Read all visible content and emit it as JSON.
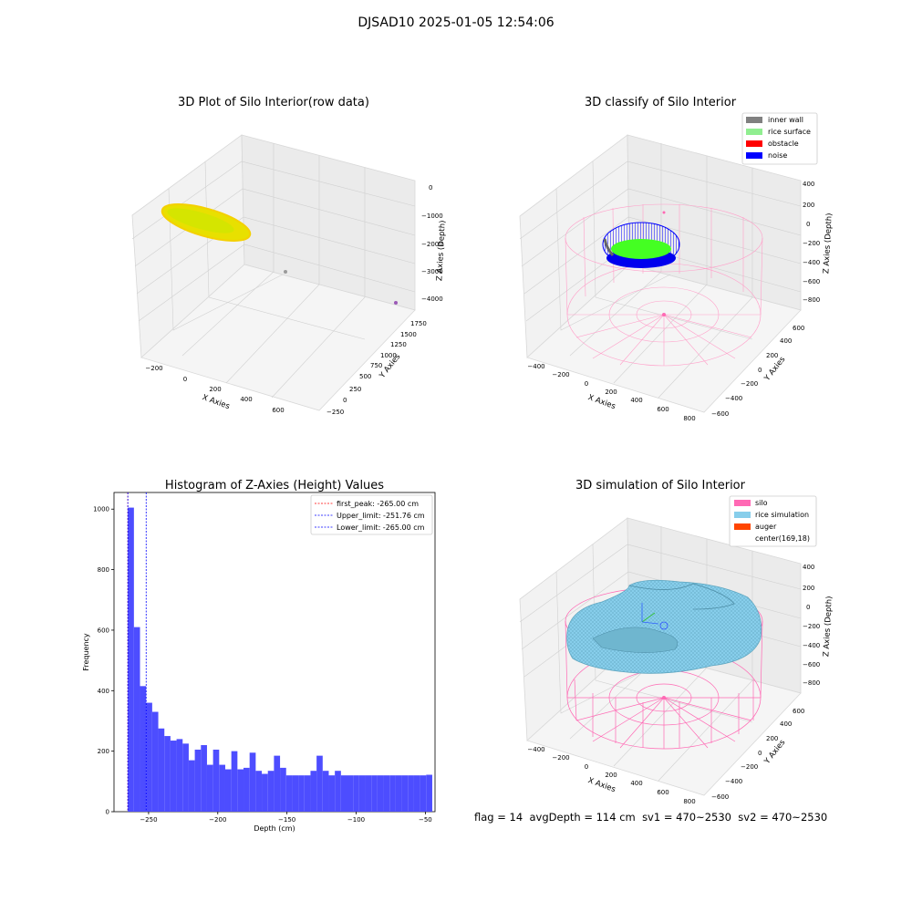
{
  "figure": {
    "suptitle": "DJSAD10 2025-01-05 12:54:06",
    "status": {
      "flag": "flag = 14",
      "avg_depth": "avgDepth = 114 cm",
      "sv1": "sv1 = 470~2530",
      "sv2": "sv2 = 470~2530"
    }
  },
  "colors": {
    "raw_points": "#e8e000",
    "inner_wall": "#808080",
    "rice_surface": "#90ee90",
    "obstacle": "#ff0000",
    "noise": "#0000ff",
    "silo": "#ff69b4",
    "rice_simulation": "#87ceeb",
    "auger": "#ff4500",
    "histogram_bar": "#4d4dff",
    "first_peak_line": "#ff0000",
    "limit_line": "#0000ff"
  },
  "chart_data": [
    {
      "type": "scatter",
      "projection": "3d",
      "title": "3D Plot of Silo Interior(row data)",
      "xlabel": "X Axies",
      "ylabel": "Y Axies",
      "zlabel": "Z Axies (Depth)",
      "x_ticks": [
        "−200",
        "0",
        "200",
        "400",
        "600"
      ],
      "y_ticks": [
        "−250",
        "0",
        "250",
        "500",
        "750",
        "1000",
        "1250",
        "1500",
        "1750"
      ],
      "z_ticks": [
        "0",
        "−1000",
        "−2000",
        "−3000",
        "−4000"
      ],
      "series": [
        {
          "points_description_color": "yellow",
          "x_range": [
            -250,
            0
          ],
          "y_range": [
            1300,
            1800
          ],
          "z_range": [
            -300,
            0
          ]
        }
      ],
      "outliers": [
        {
          "x": 200,
          "y": 800,
          "z": -2700
        },
        {
          "x": 600,
          "y": 900,
          "z": -4100
        }
      ]
    },
    {
      "type": "scatter",
      "projection": "3d",
      "title": "3D classify of Silo Interior",
      "xlabel": "X Axies",
      "ylabel": "Y Axies",
      "zlabel": "Z Axies (Depth)",
      "x_ticks": [
        "−400",
        "−200",
        "0",
        "200",
        "400",
        "600",
        "800"
      ],
      "y_ticks": [
        "−600",
        "−400",
        "−200",
        "0",
        "200",
        "400",
        "600"
      ],
      "z_ticks": [
        "400",
        "200",
        "0",
        "−200",
        "−400",
        "−600",
        "−800"
      ],
      "legend": [
        "inner wall",
        "rice surface",
        "obstacle",
        "noise"
      ],
      "legend_position": "top-right"
    },
    {
      "type": "bar",
      "title": "Histogram of Z-Axies (Height) Values",
      "xlabel": "Depth (cm)",
      "ylabel": "Frequency",
      "xlim": [
        -275,
        -43
      ],
      "ylim": [
        0,
        1055
      ],
      "x_ticks": [
        -250,
        -200,
        -150,
        -100,
        -50
      ],
      "x_tick_labels": [
        "−250",
        "−200",
        "−150",
        "−100",
        "−50"
      ],
      "y_ticks": [
        0,
        200,
        400,
        600,
        800,
        1000
      ],
      "bin_start": -265,
      "bin_width": 4.4,
      "values": [
        1005,
        610,
        415,
        360,
        330,
        275,
        250,
        235,
        240,
        225,
        170,
        205,
        220,
        155,
        205,
        155,
        140,
        200,
        140,
        145,
        195,
        135,
        125,
        135,
        185,
        145,
        120,
        120,
        120,
        120,
        135,
        185,
        135,
        120,
        135,
        120,
        120,
        120,
        120,
        120,
        120,
        120,
        120,
        120,
        120,
        120,
        120,
        120,
        120,
        122
      ],
      "reference_lines": [
        {
          "name": "first_peak: -265.00 cm",
          "x": -265.0,
          "color": "#ff0000"
        },
        {
          "name": "Upper_limit: -251.76 cm",
          "x": -251.76,
          "color": "#0000ff"
        },
        {
          "name": "Lower_limit: -265.00 cm",
          "x": -265.0,
          "color": "#0000ff"
        }
      ],
      "legend_position": "top-right"
    },
    {
      "type": "scatter",
      "projection": "3d",
      "title": "3D simulation of Silo Interior",
      "xlabel": "X Axies",
      "ylabel": "Y Axies",
      "zlabel": "Z Axies (Depth)",
      "x_ticks": [
        "−400",
        "−200",
        "0",
        "200",
        "400",
        "600",
        "800"
      ],
      "y_ticks": [
        "−600",
        "−400",
        "−200",
        "0",
        "200",
        "400",
        "600"
      ],
      "z_ticks": [
        "400",
        "200",
        "0",
        "−200",
        "−400",
        "−600",
        "−800"
      ],
      "legend": [
        "silo",
        "rice simulation",
        "auger",
        "center(169,18)"
      ],
      "legend_position": "top-right"
    }
  ]
}
